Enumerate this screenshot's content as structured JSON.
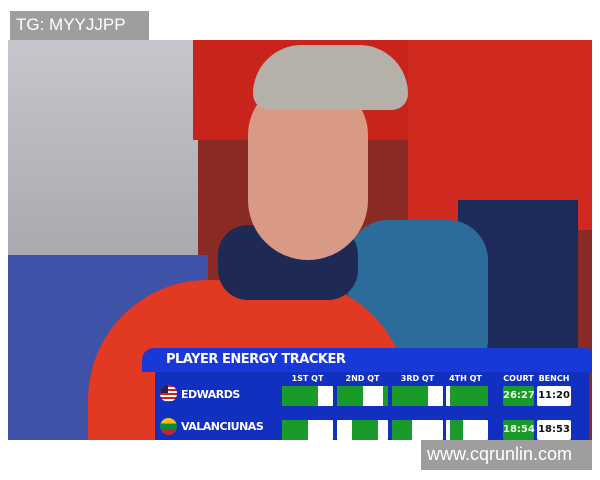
{
  "watermarks": {
    "top_left": "TG: MYYJJPP",
    "bottom_right": "www.cqrunlin.com"
  },
  "tracker": {
    "title": "PLAYER ENERGY TRACKER",
    "columns": [
      "1ST QT",
      "2ND QT",
      "3RD QT",
      "4TH QT",
      "COURT",
      "BENCH"
    ],
    "colors": {
      "on_court": "#1a9a2a",
      "bench": "#ffffff",
      "panel": "#1230c0",
      "header": "#1838d8"
    },
    "players": [
      {
        "name": "EDWARDS",
        "flag": "usa-flag-icon",
        "court": "26:27",
        "bench": "11:20",
        "on_court_fractions_by_quarter": [
          [
            [
              0,
              0.7
            ]
          ],
          [
            [
              0,
              0.5
            ],
            [
              0.9,
              1
            ]
          ],
          [
            [
              0,
              0.7
            ]
          ],
          [
            [
              0.1,
              1
            ]
          ]
        ]
      },
      {
        "name": "VALANCIUNAS",
        "flag": "lithuania-flag-icon",
        "court": "18:54",
        "bench": "18:53",
        "on_court_fractions_by_quarter": [
          [
            [
              0,
              0.5
            ]
          ],
          [
            [
              0.3,
              0.8
            ]
          ],
          [
            [
              0,
              0.4
            ]
          ],
          [
            [
              0.1,
              0.4
            ]
          ]
        ]
      }
    ]
  }
}
